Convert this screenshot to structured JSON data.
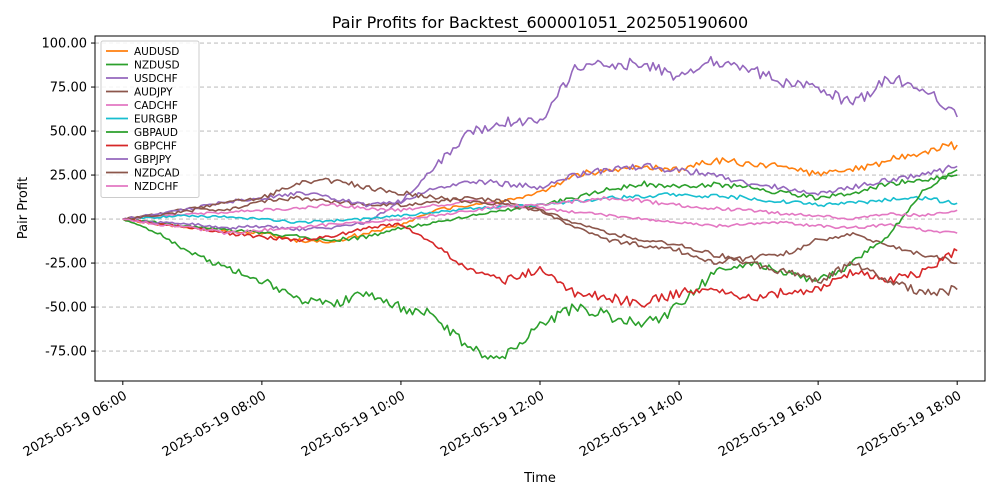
{
  "chart_data": {
    "type": "line",
    "title": "Pair Profits for Backtest_600001051_202505190600",
    "xlabel": "Time",
    "ylabel": "Pair Profit",
    "xlim": [
      "2025-05-19 05:36",
      "2025-05-19 18:24"
    ],
    "ylim": [
      -92,
      104
    ],
    "x_ticks": [
      "2025-05-19 06:00",
      "2025-05-19 08:00",
      "2025-05-19 10:00",
      "2025-05-19 12:00",
      "2025-05-19 14:00",
      "2025-05-19 16:00",
      "2025-05-19 18:00"
    ],
    "y_ticks": [
      -75,
      -50,
      -25,
      0,
      25,
      50,
      75,
      100
    ],
    "y_tick_labels": [
      "-75.00",
      "-50.00",
      "-25.00",
      "0.00",
      "25.00",
      "50.00",
      "75.00",
      "100.00"
    ],
    "grid": "y-dashed",
    "legend_position": "top-left",
    "x": [
      "2025-05-19 06:00",
      "2025-05-19 06:30",
      "2025-05-19 07:00",
      "2025-05-19 07:30",
      "2025-05-19 08:00",
      "2025-05-19 08:30",
      "2025-05-19 09:00",
      "2025-05-19 09:30",
      "2025-05-19 10:00",
      "2025-05-19 10:30",
      "2025-05-19 11:00",
      "2025-05-19 11:30",
      "2025-05-19 12:00",
      "2025-05-19 12:30",
      "2025-05-19 13:00",
      "2025-05-19 13:30",
      "2025-05-19 14:00",
      "2025-05-19 14:30",
      "2025-05-19 15:00",
      "2025-05-19 15:30",
      "2025-05-19 16:00",
      "2025-05-19 16:30",
      "2025-05-19 17:00",
      "2025-05-19 17:30",
      "2025-05-19 18:00"
    ],
    "series": [
      {
        "name": "AUDUSD",
        "color": "#ff7f0e",
        "values": [
          0,
          -3,
          -5,
          -7,
          -8,
          -12,
          -13,
          -8,
          -3,
          5,
          8,
          10,
          15,
          25,
          28,
          30,
          28,
          33,
          32,
          30,
          25,
          28,
          33,
          38,
          42
        ]
      },
      {
        "name": "NZDUSD",
        "color": "#2ca02c",
        "values": [
          0,
          -2,
          -4,
          -6,
          -8,
          -10,
          -12,
          -10,
          -5,
          -2,
          2,
          5,
          8,
          12,
          17,
          20,
          18,
          20,
          18,
          15,
          12,
          15,
          20,
          22,
          25
        ]
      },
      {
        "name": "USDCHF",
        "color": "#9467bd",
        "values": [
          0,
          -2,
          -3,
          -5,
          -4,
          -6,
          -5,
          -2,
          10,
          30,
          50,
          55,
          55,
          85,
          88,
          88,
          80,
          90,
          85,
          78,
          75,
          65,
          80,
          75,
          58
        ]
      },
      {
        "name": "AUDJPY",
        "color": "#8c564b",
        "values": [
          0,
          3,
          6,
          5,
          10,
          12,
          10,
          8,
          8,
          10,
          12,
          10,
          5,
          -5,
          -12,
          -15,
          -18,
          -25,
          -22,
          -20,
          -12,
          -8,
          -15,
          -20,
          -25
        ]
      },
      {
        "name": "CADCHF",
        "color": "#e377c2",
        "values": [
          0,
          2,
          3,
          4,
          5,
          6,
          8,
          6,
          5,
          8,
          10,
          8,
          6,
          4,
          2,
          0,
          -2,
          -4,
          -3,
          -2,
          -4,
          -5,
          -3,
          -6,
          -8
        ]
      },
      {
        "name": "EURGBP",
        "color": "#17becf",
        "values": [
          0,
          1,
          2,
          1,
          0,
          -2,
          -1,
          0,
          2,
          4,
          6,
          7,
          8,
          10,
          12,
          13,
          14,
          13,
          12,
          10,
          8,
          9,
          11,
          12,
          9
        ]
      },
      {
        "name": "GBPAUD",
        "color": "#2ca02c",
        "values": [
          0,
          -8,
          -20,
          -28,
          -35,
          -45,
          -48,
          -42,
          -50,
          -55,
          -75,
          -78,
          -60,
          -50,
          -55,
          -60,
          -50,
          -30,
          -25,
          -30,
          -35,
          -25,
          -10,
          15,
          28
        ]
      },
      {
        "name": "GBPCHF",
        "color": "#d62728",
        "values": [
          0,
          -3,
          -5,
          -8,
          -10,
          -12,
          -10,
          -5,
          -3,
          -15,
          -30,
          -35,
          -28,
          -42,
          -45,
          -48,
          -42,
          -40,
          -45,
          -42,
          -40,
          -30,
          -35,
          -30,
          -18
        ]
      },
      {
        "name": "GBPJPY",
        "color": "#9467bd",
        "values": [
          0,
          3,
          6,
          10,
          12,
          15,
          12,
          8,
          10,
          18,
          22,
          20,
          18,
          25,
          28,
          30,
          28,
          25,
          20,
          18,
          15,
          18,
          22,
          25,
          30
        ]
      },
      {
        "name": "NZDCAD",
        "color": "#8c564b",
        "values": [
          0,
          2,
          5,
          10,
          12,
          20,
          22,
          18,
          15,
          12,
          10,
          8,
          5,
          -2,
          -8,
          -12,
          -15,
          -20,
          -25,
          -30,
          -35,
          -25,
          -35,
          -42,
          -40
        ]
      },
      {
        "name": "NZDCHF",
        "color": "#e377c2",
        "values": [
          0,
          -3,
          -5,
          -8,
          -6,
          -5,
          -3,
          -2,
          0,
          2,
          5,
          7,
          8,
          10,
          12,
          10,
          8,
          6,
          5,
          3,
          2,
          0,
          3,
          2,
          5
        ]
      }
    ]
  }
}
